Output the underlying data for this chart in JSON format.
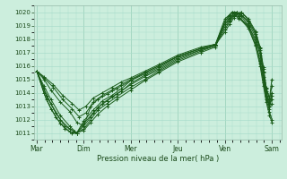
{
  "xlabel": "Pression niveau de la mer( hPa )",
  "bg_color": "#cceedd",
  "grid_color": "#aaddcc",
  "line_color": "#1a5c1a",
  "ylim": [
    1010.5,
    1020.5
  ],
  "day_labels": [
    "Mar",
    "Dim",
    "Mer",
    "Jeu",
    "Ven",
    "Sam"
  ],
  "day_positions": [
    0,
    1,
    2,
    3,
    4,
    5
  ],
  "yticks": [
    1011,
    1012,
    1013,
    1014,
    1015,
    1016,
    1017,
    1018,
    1019,
    1020
  ],
  "lines": [
    [
      0.0,
      1015.6,
      0.15,
      1014.5,
      0.3,
      1013.5,
      0.5,
      1012.3,
      0.7,
      1011.5,
      0.85,
      1011.0,
      1.0,
      1011.2,
      1.15,
      1011.8,
      1.3,
      1012.4,
      1.5,
      1013.0,
      1.7,
      1013.5,
      2.0,
      1014.2,
      2.3,
      1014.9,
      2.6,
      1015.5,
      3.0,
      1016.3,
      3.5,
      1017.0,
      3.8,
      1017.4,
      4.0,
      1019.3,
      4.1,
      1019.8,
      4.15,
      1020.0,
      4.25,
      1020.0,
      4.35,
      1019.7,
      4.5,
      1019.0,
      4.65,
      1018.0,
      4.75,
      1016.8,
      4.82,
      1015.2,
      4.88,
      1013.8,
      4.95,
      1012.8,
      5.0,
      1013.2
    ],
    [
      0.0,
      1015.6,
      0.15,
      1014.3,
      0.3,
      1013.2,
      0.5,
      1012.0,
      0.7,
      1011.3,
      0.85,
      1011.0,
      1.0,
      1011.3,
      1.15,
      1012.0,
      1.3,
      1012.7,
      1.5,
      1013.2,
      1.7,
      1013.7,
      2.0,
      1014.4,
      2.3,
      1015.0,
      2.6,
      1015.6,
      3.0,
      1016.4,
      3.5,
      1017.1,
      3.8,
      1017.5,
      4.0,
      1019.1,
      4.1,
      1019.6,
      4.2,
      1019.9,
      4.25,
      1020.0,
      4.35,
      1019.8,
      4.5,
      1019.2,
      4.65,
      1018.2,
      4.75,
      1017.0,
      4.82,
      1015.5,
      4.88,
      1014.0,
      4.95,
      1013.0,
      5.0,
      1013.5
    ],
    [
      0.0,
      1015.6,
      0.15,
      1014.0,
      0.3,
      1012.8,
      0.5,
      1011.7,
      0.7,
      1011.1,
      0.85,
      1011.0,
      1.0,
      1011.5,
      1.15,
      1012.2,
      1.3,
      1012.9,
      1.5,
      1013.4,
      1.7,
      1013.9,
      2.0,
      1014.6,
      2.3,
      1015.2,
      2.6,
      1015.7,
      3.0,
      1016.5,
      3.5,
      1017.2,
      3.8,
      1017.5,
      4.0,
      1018.9,
      4.1,
      1019.4,
      4.2,
      1019.8,
      4.25,
      1020.0,
      4.35,
      1019.8,
      4.5,
      1019.3,
      4.65,
      1018.4,
      4.75,
      1017.2,
      4.82,
      1015.6,
      4.88,
      1014.1,
      4.95,
      1013.2,
      5.0,
      1014.0
    ],
    [
      0.0,
      1015.6,
      0.2,
      1013.8,
      0.4,
      1012.5,
      0.6,
      1011.5,
      0.8,
      1011.1,
      0.85,
      1011.0,
      1.0,
      1011.7,
      1.2,
      1012.5,
      1.4,
      1013.2,
      1.6,
      1013.7,
      1.8,
      1014.1,
      2.0,
      1014.7,
      2.3,
      1015.3,
      2.6,
      1015.8,
      3.0,
      1016.6,
      3.5,
      1017.2,
      3.8,
      1017.5,
      4.0,
      1018.7,
      4.1,
      1019.3,
      4.2,
      1019.7,
      4.3,
      1019.9,
      4.35,
      1020.0,
      4.5,
      1019.4,
      4.65,
      1018.5,
      4.75,
      1017.3,
      4.82,
      1015.8,
      4.88,
      1014.3,
      4.95,
      1013.5,
      5.0,
      1014.5
    ],
    [
      0.0,
      1015.6,
      0.2,
      1013.5,
      0.4,
      1012.2,
      0.6,
      1011.3,
      0.75,
      1011.0,
      0.85,
      1011.0,
      1.0,
      1011.9,
      1.2,
      1012.7,
      1.4,
      1013.4,
      1.6,
      1013.8,
      1.8,
      1014.3,
      2.0,
      1014.9,
      2.3,
      1015.4,
      2.6,
      1015.9,
      3.0,
      1016.7,
      3.5,
      1017.3,
      3.8,
      1017.6,
      4.0,
      1018.5,
      4.1,
      1019.1,
      4.2,
      1019.6,
      4.3,
      1019.9,
      4.35,
      1020.0,
      4.5,
      1019.5,
      4.65,
      1018.6,
      4.75,
      1017.4,
      4.82,
      1015.9,
      4.88,
      1014.4,
      4.95,
      1013.6,
      5.0,
      1015.0
    ],
    [
      0.0,
      1015.6,
      0.15,
      1015.0,
      0.3,
      1014.2,
      0.5,
      1013.3,
      0.7,
      1012.6,
      0.85,
      1011.8,
      1.0,
      1011.5,
      1.15,
      1013.0,
      1.3,
      1013.5,
      1.5,
      1013.9,
      1.7,
      1014.3,
      2.0,
      1014.9,
      2.3,
      1015.5,
      2.6,
      1016.0,
      3.0,
      1016.7,
      3.5,
      1017.3,
      3.8,
      1017.6,
      4.0,
      1019.5,
      4.1,
      1019.8,
      4.15,
      1020.0,
      4.3,
      1019.6,
      4.5,
      1018.8,
      4.65,
      1017.5,
      4.75,
      1016.0,
      4.82,
      1014.5,
      4.88,
      1013.3,
      4.95,
      1012.3,
      5.0,
      1011.8
    ],
    [
      0.0,
      1015.6,
      0.15,
      1015.1,
      0.35,
      1014.4,
      0.55,
      1013.5,
      0.75,
      1012.8,
      0.9,
      1012.2,
      1.05,
      1012.5,
      1.2,
      1013.3,
      1.4,
      1013.8,
      1.6,
      1014.2,
      1.8,
      1014.6,
      2.0,
      1015.0,
      2.3,
      1015.5,
      2.6,
      1016.0,
      3.0,
      1016.7,
      3.5,
      1017.3,
      3.8,
      1017.6,
      4.0,
      1019.3,
      4.1,
      1019.7,
      4.2,
      1020.0,
      4.3,
      1019.7,
      4.5,
      1018.9,
      4.65,
      1017.6,
      4.75,
      1016.2,
      4.82,
      1014.8,
      4.88,
      1013.5,
      4.95,
      1012.6,
      5.0,
      1012.0
    ],
    [
      0.0,
      1015.6,
      0.15,
      1015.2,
      0.35,
      1014.6,
      0.55,
      1013.8,
      0.75,
      1013.2,
      0.9,
      1012.7,
      1.05,
      1013.0,
      1.2,
      1013.6,
      1.4,
      1014.0,
      1.6,
      1014.4,
      1.8,
      1014.8,
      2.0,
      1015.1,
      2.3,
      1015.6,
      2.6,
      1016.1,
      3.0,
      1016.8,
      3.5,
      1017.4,
      3.8,
      1017.6,
      4.0,
      1019.1,
      4.1,
      1019.5,
      4.2,
      1019.8,
      4.3,
      1019.5,
      4.5,
      1019.0,
      4.65,
      1017.8,
      4.75,
      1016.4,
      4.82,
      1015.0,
      4.88,
      1013.8,
      4.95,
      1013.0,
      5.0,
      1013.8
    ]
  ]
}
